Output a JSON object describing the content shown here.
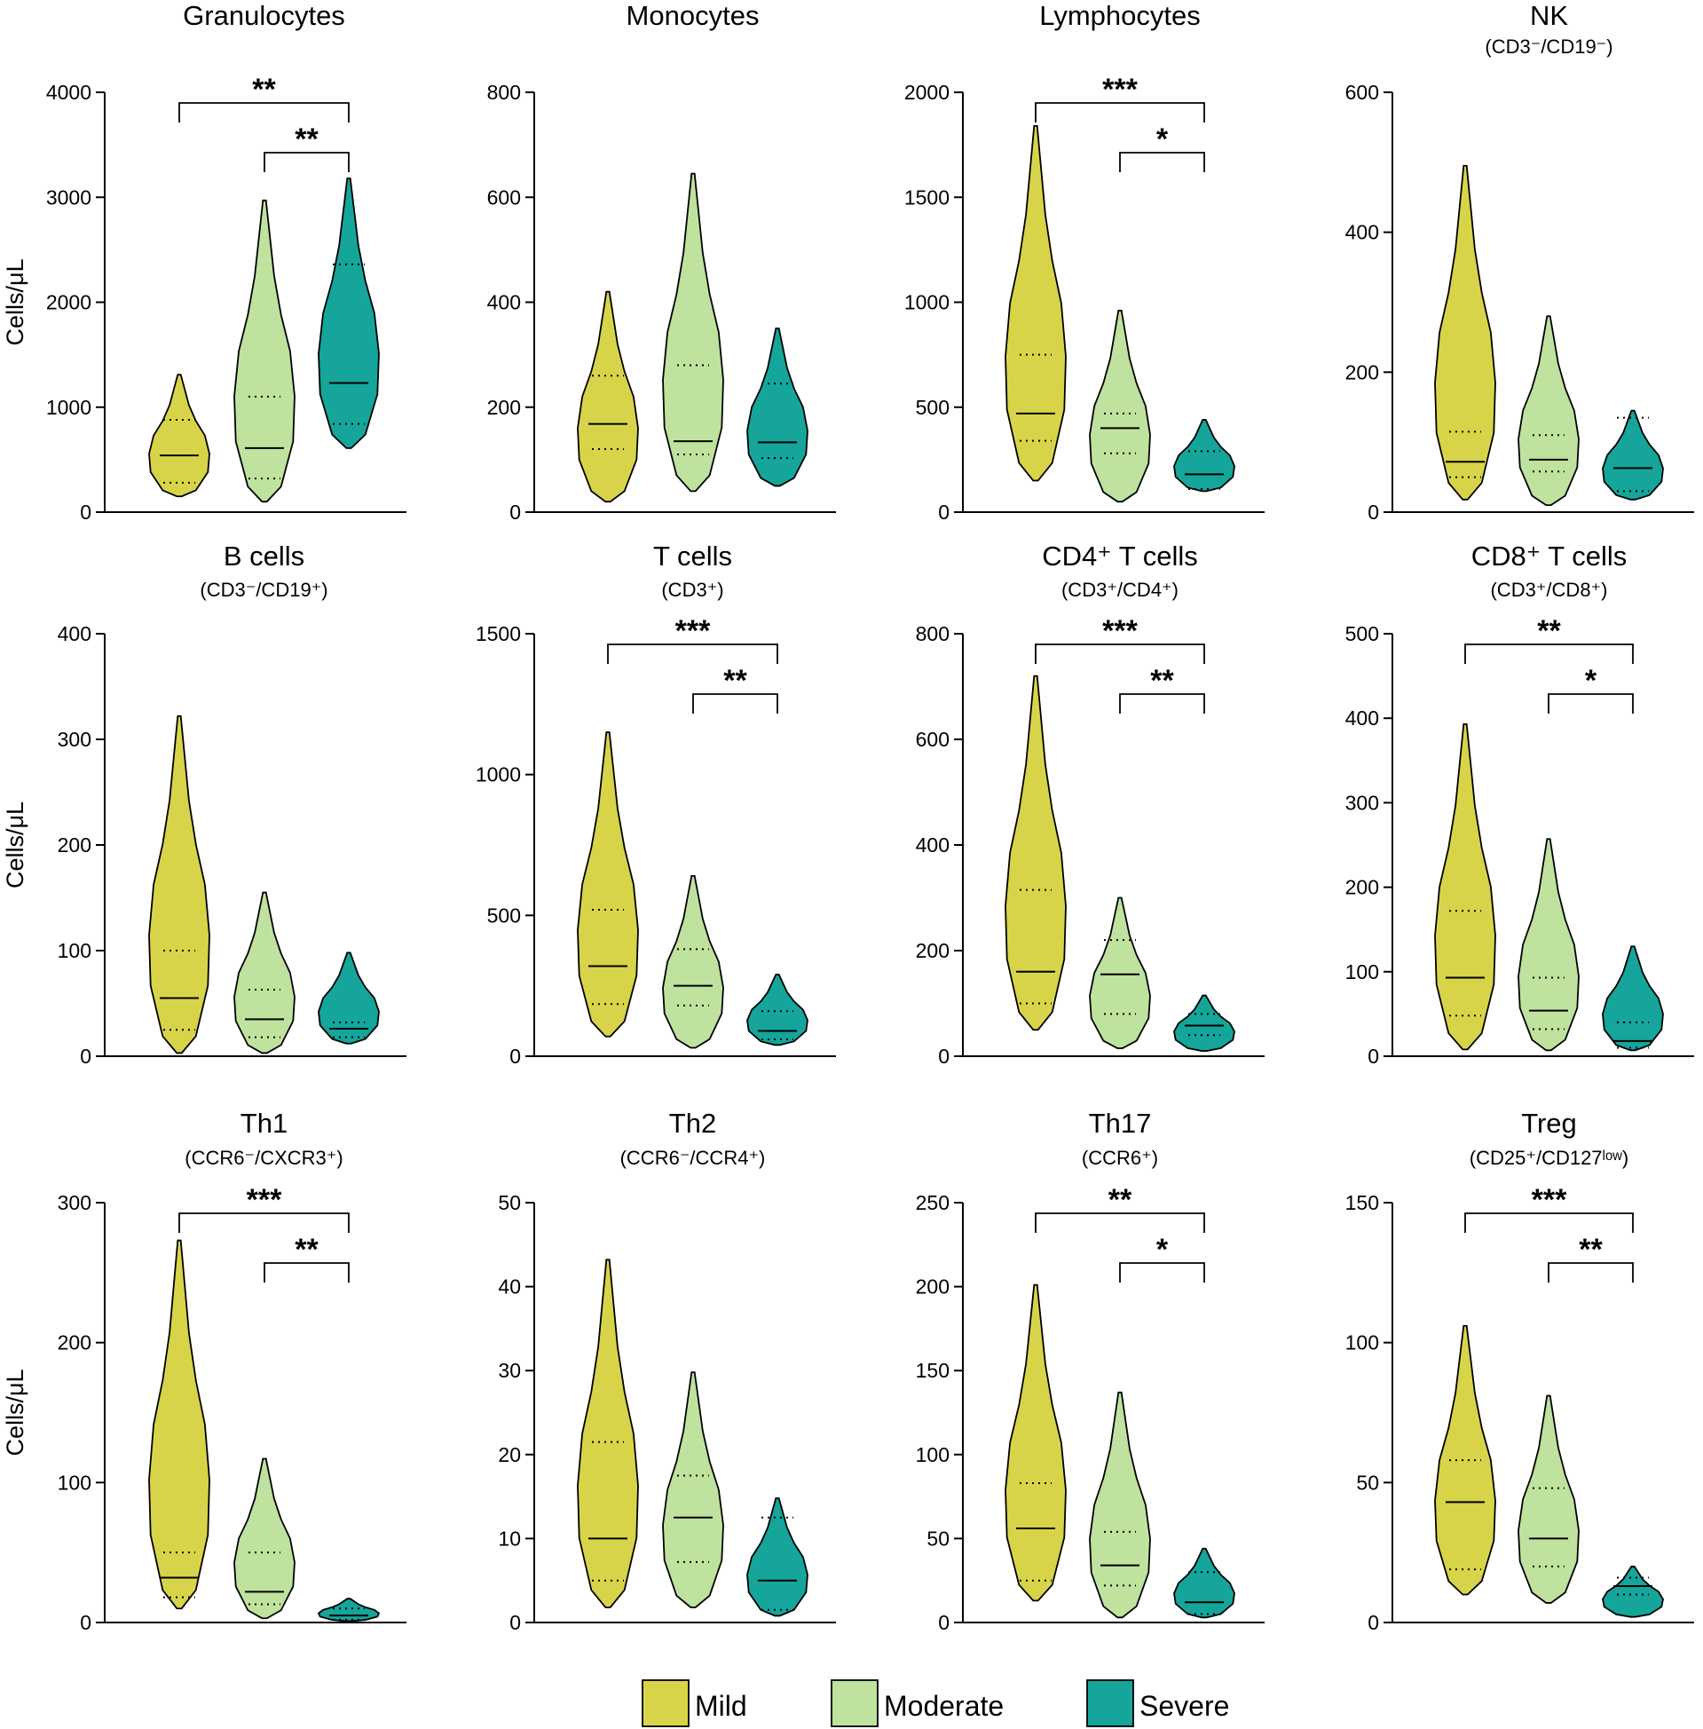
{
  "colors": {
    "mild": "#d8d44a",
    "moderate": "#bfe29e",
    "severe": "#15a59a"
  },
  "legend": [
    {
      "key": "mild",
      "label": "Mild"
    },
    {
      "key": "moderate",
      "label": "Moderate"
    },
    {
      "key": "severe",
      "label": "Severe"
    }
  ],
  "chart_data": [
    {
      "type": "violin",
      "title": "Granulocytes",
      "subtitle": "",
      "ylabel": "Cells/μL",
      "ylim": [
        0,
        4000
      ],
      "yticks": [
        0,
        1000,
        2000,
        3000,
        4000
      ],
      "series": [
        {
          "name": "Mild",
          "min": 150,
          "q1": 280,
          "median": 540,
          "q3": 880,
          "max": 1310
        },
        {
          "name": "Moderate",
          "min": 100,
          "q1": 320,
          "median": 610,
          "q3": 1100,
          "max": 2970
        },
        {
          "name": "Severe",
          "min": 610,
          "q1": 840,
          "median": 1230,
          "q3": 2360,
          "max": 3180
        }
      ],
      "significance": [
        {
          "from": "Mild",
          "to": "Severe",
          "label": "**"
        },
        {
          "from": "Moderate",
          "to": "Severe",
          "label": "**"
        }
      ]
    },
    {
      "type": "violin",
      "title": "Monocytes",
      "subtitle": "",
      "ylabel": "",
      "ylim": [
        0,
        800
      ],
      "yticks": [
        0,
        200,
        400,
        600,
        800
      ],
      "series": [
        {
          "name": "Mild",
          "min": 20,
          "q1": 120,
          "median": 168,
          "q3": 260,
          "max": 420
        },
        {
          "name": "Moderate",
          "min": 40,
          "q1": 110,
          "median": 135,
          "q3": 280,
          "max": 645
        },
        {
          "name": "Severe",
          "min": 50,
          "q1": 103,
          "median": 133,
          "q3": 245,
          "max": 350
        }
      ],
      "significance": []
    },
    {
      "type": "violin",
      "title": "Lymphocytes",
      "subtitle": "",
      "ylabel": "",
      "ylim": [
        0,
        2000
      ],
      "yticks": [
        0,
        500,
        1000,
        1500,
        2000
      ],
      "series": [
        {
          "name": "Mild",
          "min": 150,
          "q1": 340,
          "median": 470,
          "q3": 750,
          "max": 1840
        },
        {
          "name": "Moderate",
          "min": 50,
          "q1": 280,
          "median": 400,
          "q3": 470,
          "max": 960
        },
        {
          "name": "Severe",
          "min": 100,
          "q1": 110,
          "median": 180,
          "q3": 290,
          "max": 440
        }
      ],
      "significance": [
        {
          "from": "Mild",
          "to": "Severe",
          "label": "***"
        },
        {
          "from": "Moderate",
          "to": "Severe",
          "label": "*"
        }
      ]
    },
    {
      "type": "violin",
      "title": "NK",
      "subtitle": "(CD3⁻/CD19⁻)",
      "ylabel": "",
      "ylim": [
        0,
        600
      ],
      "yticks": [
        0,
        200,
        400,
        600
      ],
      "series": [
        {
          "name": "Mild",
          "min": 18,
          "q1": 50,
          "median": 72,
          "q3": 115,
          "max": 495
        },
        {
          "name": "Moderate",
          "min": 10,
          "q1": 58,
          "median": 75,
          "q3": 110,
          "max": 280
        },
        {
          "name": "Severe",
          "min": 18,
          "q1": 30,
          "median": 63,
          "q3": 135,
          "max": 145
        }
      ],
      "significance": []
    },
    {
      "type": "violin",
      "title": "B cells",
      "subtitle": "(CD3⁻/CD19⁺)",
      "ylabel": "Cells/μL",
      "ylim": [
        0,
        400
      ],
      "yticks": [
        0,
        100,
        200,
        300,
        400
      ],
      "series": [
        {
          "name": "Mild",
          "min": 3,
          "q1": 25,
          "median": 55,
          "q3": 100,
          "max": 322
        },
        {
          "name": "Moderate",
          "min": 3,
          "q1": 18,
          "median": 35,
          "q3": 63,
          "max": 155
        },
        {
          "name": "Severe",
          "min": 12,
          "q1": 18,
          "median": 26,
          "q3": 32,
          "max": 98
        }
      ],
      "significance": []
    },
    {
      "type": "violin",
      "title": "T cells",
      "subtitle": "(CD3⁺)",
      "ylabel": "",
      "ylim": [
        0,
        1500
      ],
      "yticks": [
        0,
        500,
        1000,
        1500
      ],
      "series": [
        {
          "name": "Mild",
          "min": 70,
          "q1": 185,
          "median": 320,
          "q3": 520,
          "max": 1150
        },
        {
          "name": "Moderate",
          "min": 30,
          "q1": 180,
          "median": 250,
          "q3": 380,
          "max": 640
        },
        {
          "name": "Severe",
          "min": 40,
          "q1": 60,
          "median": 90,
          "q3": 160,
          "max": 290
        }
      ],
      "significance": [
        {
          "from": "Mild",
          "to": "Severe",
          "label": "***"
        },
        {
          "from": "Moderate",
          "to": "Severe",
          "label": "**"
        }
      ]
    },
    {
      "type": "violin",
      "title": "CD4⁺ T cells",
      "subtitle": "(CD3⁺/CD4⁺)",
      "ylabel": "",
      "ylim": [
        0,
        800
      ],
      "yticks": [
        0,
        200,
        400,
        600,
        800
      ],
      "series": [
        {
          "name": "Mild",
          "min": 50,
          "q1": 100,
          "median": 160,
          "q3": 315,
          "max": 720
        },
        {
          "name": "Moderate",
          "min": 15,
          "q1": 80,
          "median": 155,
          "q3": 220,
          "max": 300
        },
        {
          "name": "Severe",
          "min": 10,
          "q1": 40,
          "median": 58,
          "q3": 80,
          "max": 115
        }
      ],
      "significance": [
        {
          "from": "Mild",
          "to": "Severe",
          "label": "***"
        },
        {
          "from": "Moderate",
          "to": "Severe",
          "label": "**"
        }
      ]
    },
    {
      "type": "violin",
      "title": "CD8⁺ T cells",
      "subtitle": "(CD3⁺/CD8⁺)",
      "ylabel": "",
      "ylim": [
        0,
        500
      ],
      "yticks": [
        0,
        100,
        200,
        300,
        400,
        500
      ],
      "series": [
        {
          "name": "Mild",
          "min": 8,
          "q1": 48,
          "median": 93,
          "q3": 172,
          "max": 393
        },
        {
          "name": "Moderate",
          "min": 7,
          "q1": 32,
          "median": 54,
          "q3": 93,
          "max": 257
        },
        {
          "name": "Severe",
          "min": 7,
          "q1": 10,
          "median": 18,
          "q3": 40,
          "max": 130
        }
      ],
      "significance": [
        {
          "from": "Mild",
          "to": "Severe",
          "label": "**"
        },
        {
          "from": "Moderate",
          "to": "Severe",
          "label": "*"
        }
      ]
    },
    {
      "type": "violin",
      "title": "Th1",
      "subtitle": "(CCR6⁻/CXCR3⁺)",
      "ylabel": "Cells/μL",
      "ylim": [
        0,
        300
      ],
      "yticks": [
        0,
        100,
        200,
        300
      ],
      "series": [
        {
          "name": "Mild",
          "min": 10,
          "q1": 18,
          "median": 32,
          "q3": 50,
          "max": 273
        },
        {
          "name": "Moderate",
          "min": 3,
          "q1": 13,
          "median": 22,
          "q3": 50,
          "max": 117
        },
        {
          "name": "Severe",
          "min": 1,
          "q1": 2,
          "median": 5,
          "q3": 10,
          "max": 17
        }
      ],
      "significance": [
        {
          "from": "Mild",
          "to": "Severe",
          "label": "***"
        },
        {
          "from": "Moderate",
          "to": "Severe",
          "label": "**"
        }
      ]
    },
    {
      "type": "violin",
      "title": "Th2",
      "subtitle": "(CCR6⁻/CCR4⁺)",
      "ylabel": "",
      "ylim": [
        0,
        50
      ],
      "yticks": [
        0,
        10,
        20,
        30,
        40,
        50
      ],
      "series": [
        {
          "name": "Mild",
          "min": 1.8,
          "q1": 5,
          "median": 10,
          "q3": 21.5,
          "max": 43.2
        },
        {
          "name": "Moderate",
          "min": 1.8,
          "q1": 7.2,
          "median": 12.5,
          "q3": 17.5,
          "max": 29.8
        },
        {
          "name": "Severe",
          "min": 0.8,
          "q1": 1.5,
          "median": 5,
          "q3": 12.5,
          "max": 14.8
        }
      ],
      "significance": []
    },
    {
      "type": "violin",
      "title": "Th17",
      "subtitle": "(CCR6⁺)",
      "ylabel": "",
      "ylim": [
        0,
        250
      ],
      "yticks": [
        0,
        50,
        100,
        150,
        200,
        250
      ],
      "series": [
        {
          "name": "Mild",
          "min": 13,
          "q1": 25,
          "median": 56,
          "q3": 83,
          "max": 201
        },
        {
          "name": "Moderate",
          "min": 3,
          "q1": 22,
          "median": 34,
          "q3": 54,
          "max": 137
        },
        {
          "name": "Severe",
          "min": 3,
          "q1": 5,
          "median": 12,
          "q3": 30,
          "max": 44
        }
      ],
      "significance": [
        {
          "from": "Mild",
          "to": "Severe",
          "label": "**"
        },
        {
          "from": "Moderate",
          "to": "Severe",
          "label": "*"
        }
      ]
    },
    {
      "type": "violin",
      "title": "Treg",
      "subtitle": "(CD25⁺/CD127ˡᵒʷ)",
      "ylabel": "",
      "ylim": [
        0,
        150
      ],
      "yticks": [
        0,
        50,
        100,
        150
      ],
      "series": [
        {
          "name": "Mild",
          "min": 10,
          "q1": 19,
          "median": 43,
          "q3": 58,
          "max": 106
        },
        {
          "name": "Moderate",
          "min": 7,
          "q1": 20,
          "median": 30,
          "q3": 48,
          "max": 81
        },
        {
          "name": "Severe",
          "min": 2,
          "q1": 10,
          "median": 13,
          "q3": 16,
          "max": 20
        }
      ],
      "significance": [
        {
          "from": "Mild",
          "to": "Severe",
          "label": "***"
        },
        {
          "from": "Moderate",
          "to": "Severe",
          "label": "**"
        }
      ]
    }
  ]
}
